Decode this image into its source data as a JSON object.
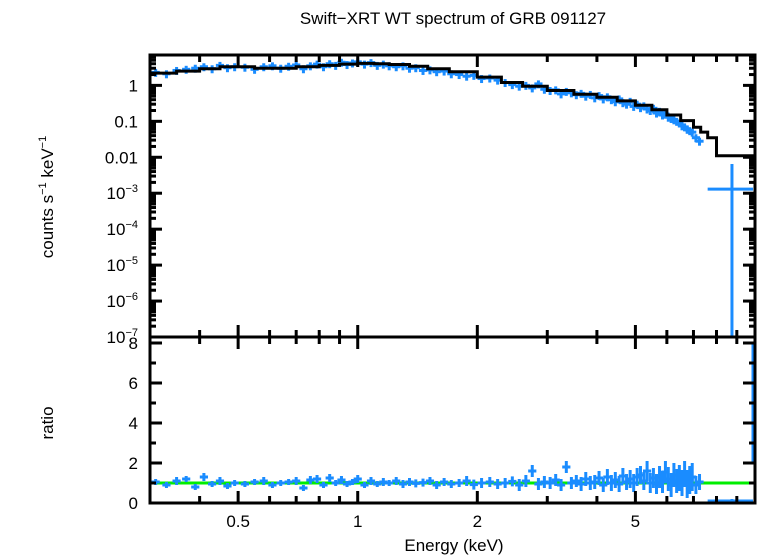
{
  "chart_data": [
    {
      "panel": "spectrum",
      "type": "scatter",
      "title": "Swift−XRT WT spectrum of GRB 091127",
      "xlabel": "Energy (keV)",
      "ylabel": "counts s⁻¹ keV⁻¹",
      "ylabel_parts": [
        "counts s",
        "−1",
        " keV",
        "−1"
      ],
      "xscale": "log",
      "yscale": "log",
      "xlim": [
        0.3,
        10
      ],
      "ylim": [
        1e-07,
        7
      ],
      "x_ticks": [
        0.5,
        1,
        2,
        5
      ],
      "x_tick_labels": [
        "0.5",
        "1",
        "2",
        "5"
      ],
      "y_ticks": [
        {
          "value": 1,
          "label": "1"
        },
        {
          "value": 0.1,
          "label": "0.1"
        },
        {
          "value": 0.01,
          "label": "0.01"
        },
        {
          "value": 0.001,
          "base": "10",
          "exp": "−3"
        },
        {
          "value": 0.0001,
          "base": "10",
          "exp": "−4"
        },
        {
          "value": 1e-05,
          "base": "10",
          "exp": "−5"
        },
        {
          "value": 1e-06,
          "base": "10",
          "exp": "−6"
        },
        {
          "value": 1e-07,
          "base": "10",
          "exp": "−7"
        }
      ],
      "series": [
        {
          "name": "data",
          "color": "#1a8cff",
          "style": "crosses with error bars",
          "x": [
            0.31,
            0.33,
            0.35,
            0.37,
            0.39,
            0.41,
            0.43,
            0.45,
            0.47,
            0.49,
            0.52,
            0.55,
            0.58,
            0.61,
            0.64,
            0.67,
            0.7,
            0.73,
            0.76,
            0.79,
            0.82,
            0.85,
            0.88,
            0.91,
            0.94,
            0.97,
            1.0,
            1.04,
            1.08,
            1.12,
            1.16,
            1.2,
            1.25,
            1.3,
            1.35,
            1.4,
            1.46,
            1.52,
            1.58,
            1.65,
            1.72,
            1.8,
            1.88,
            1.96,
            2.05,
            2.15,
            2.25,
            2.35,
            2.45,
            2.55,
            2.65,
            2.75,
            2.85,
            2.95,
            3.05,
            3.15,
            3.25,
            3.35,
            3.45,
            3.55,
            3.65,
            3.75,
            3.85,
            3.95,
            4.05,
            4.15,
            4.25,
            4.35,
            4.45,
            4.55,
            4.65,
            4.75,
            4.85,
            4.95,
            5.05,
            5.15,
            5.25,
            5.35,
            5.45,
            5.55,
            5.65,
            5.75,
            5.85,
            5.95,
            6.05,
            6.15,
            6.25,
            6.35,
            6.45,
            6.55,
            6.65,
            6.75,
            6.85,
            6.95,
            7.1,
            7.25,
            8.75
          ],
          "y": [
            2.3,
            2.1,
            2.6,
            2.8,
            3.0,
            3.3,
            2.9,
            3.6,
            3.1,
            3.3,
            3.2,
            2.8,
            3.3,
            3.5,
            3.0,
            3.4,
            3.7,
            2.9,
            3.5,
            3.9,
            3.3,
            4.0,
            3.6,
            4.4,
            3.8,
            4.2,
            4.5,
            3.9,
            4.3,
            3.6,
            3.9,
            3.5,
            3.3,
            3.5,
            3.0,
            3.1,
            2.6,
            2.7,
            2.4,
            2.5,
            2.1,
            2.0,
            1.8,
            1.9,
            1.55,
            1.6,
            1.4,
            1.2,
            1.05,
            0.95,
            1.0,
            0.85,
            1.1,
            0.78,
            0.72,
            0.75,
            0.58,
            0.68,
            0.62,
            0.55,
            0.6,
            0.5,
            0.56,
            0.45,
            0.52,
            0.42,
            0.48,
            0.4,
            0.35,
            0.42,
            0.33,
            0.3,
            0.36,
            0.26,
            0.3,
            0.24,
            0.27,
            0.22,
            0.2,
            0.23,
            0.17,
            0.19,
            0.15,
            0.16,
            0.13,
            0.12,
            0.11,
            0.1,
            0.09,
            0.075,
            0.07,
            0.06,
            0.055,
            0.05,
            0.035,
            0.028,
            0.0013
          ],
          "y_err_frac": 0.25,
          "x_halfwidth_frac": 0.012
        },
        {
          "name": "model",
          "color": "#000000",
          "style": "step line",
          "x": [
            0.3,
            0.35,
            0.4,
            0.45,
            0.5,
            0.55,
            0.6,
            0.7,
            0.8,
            0.9,
            1.0,
            1.1,
            1.2,
            1.35,
            1.5,
            1.7,
            2.0,
            2.3,
            2.6,
            3.0,
            3.5,
            4.0,
            4.5,
            5.0,
            5.5,
            6.0,
            6.5,
            7.0,
            7.3,
            7.6,
            8.0,
            10.0
          ],
          "y": [
            2.2,
            2.5,
            2.9,
            3.3,
            3.3,
            3.0,
            3.0,
            3.3,
            3.6,
            3.9,
            4.1,
            4.0,
            3.8,
            3.4,
            2.9,
            2.4,
            1.7,
            1.2,
            0.95,
            0.72,
            0.57,
            0.47,
            0.37,
            0.28,
            0.21,
            0.15,
            0.105,
            0.068,
            0.05,
            0.035,
            0.011,
            0.011
          ]
        }
      ]
    },
    {
      "panel": "ratio",
      "type": "scatter",
      "xlabel": "Energy (keV)",
      "ylabel": "ratio",
      "xscale": "log",
      "yscale": "linear",
      "xlim": [
        0.3,
        10
      ],
      "ylim": [
        0,
        8
      ],
      "x_ticks": [
        0.5,
        1,
        2,
        5
      ],
      "x_tick_labels": [
        "0.5",
        "1",
        "2",
        "5"
      ],
      "y_ticks": [
        0,
        2,
        4,
        6,
        8
      ],
      "y_tick_labels": [
        "0",
        "2",
        "4",
        "6",
        "8"
      ],
      "reference_line": {
        "value": 1,
        "color": "#00ee00"
      },
      "series": [
        {
          "name": "ratio",
          "color": "#1a8cff",
          "x": [
            0.31,
            0.33,
            0.35,
            0.37,
            0.39,
            0.41,
            0.43,
            0.45,
            0.47,
            0.49,
            0.52,
            0.55,
            0.58,
            0.61,
            0.64,
            0.67,
            0.7,
            0.73,
            0.76,
            0.79,
            0.82,
            0.85,
            0.88,
            0.91,
            0.94,
            0.97,
            1.0,
            1.04,
            1.08,
            1.12,
            1.16,
            1.2,
            1.25,
            1.3,
            1.35,
            1.4,
            1.46,
            1.52,
            1.58,
            1.65,
            1.72,
            1.8,
            1.88,
            1.96,
            2.05,
            2.15,
            2.25,
            2.35,
            2.45,
            2.55,
            2.65,
            2.75,
            2.85,
            2.95,
            3.05,
            3.15,
            3.25,
            3.35,
            3.45,
            3.55,
            3.65,
            3.75,
            3.85,
            3.95,
            4.05,
            4.15,
            4.25,
            4.35,
            4.45,
            4.55,
            4.65,
            4.75,
            4.85,
            4.95,
            5.05,
            5.15,
            5.25,
            5.35,
            5.45,
            5.55,
            5.65,
            5.75,
            5.85,
            5.95,
            6.05,
            6.15,
            6.25,
            6.35,
            6.45,
            6.55,
            6.65,
            6.75,
            6.85,
            6.95,
            7.1,
            7.25,
            8.75,
            9.9
          ],
          "y": [
            1.05,
            0.9,
            1.1,
            1.2,
            0.8,
            1.3,
            0.95,
            1.1,
            0.85,
            1.0,
            0.95,
            1.05,
            1.1,
            0.9,
            1.0,
            1.05,
            1.1,
            0.75,
            1.15,
            1.2,
            0.9,
            1.25,
            1.0,
            1.15,
            0.95,
            1.05,
            1.2,
            0.9,
            1.1,
            0.95,
            1.05,
            1.0,
            1.1,
            0.95,
            1.05,
            0.98,
            1.02,
            1.1,
            0.9,
            1.05,
            0.95,
            1.0,
            1.1,
            0.92,
            1.0,
            1.05,
            0.95,
            1.0,
            1.08,
            0.9,
            1.1,
            1.6,
            0.95,
            1.05,
            1.0,
            1.15,
            0.9,
            1.8,
            1.0,
            1.1,
            0.95,
            1.2,
            1.0,
            1.05,
            1.25,
            0.9,
            1.3,
            1.0,
            1.15,
            0.95,
            1.35,
            1.05,
            1.2,
            1.0,
            1.3,
            1.4,
            1.1,
            1.6,
            1.0,
            1.25,
            0.95,
            1.3,
            1.05,
            1.55,
            1.2,
            0.9,
            1.4,
            1.1,
            1.25,
            1.0,
            1.45,
            0.95,
            1.15,
            1.3,
            0.9,
            1.05,
            0.1,
            5.0
          ],
          "y_err": [
            0.15,
            0.15,
            0.2,
            0.15,
            0.15,
            0.2,
            0.15,
            0.2,
            0.15,
            0.15,
            0.15,
            0.15,
            0.2,
            0.15,
            0.15,
            0.15,
            0.2,
            0.15,
            0.2,
            0.2,
            0.15,
            0.2,
            0.15,
            0.2,
            0.15,
            0.15,
            0.2,
            0.15,
            0.2,
            0.15,
            0.2,
            0.15,
            0.2,
            0.2,
            0.2,
            0.2,
            0.2,
            0.2,
            0.2,
            0.2,
            0.2,
            0.2,
            0.25,
            0.25,
            0.25,
            0.25,
            0.25,
            0.25,
            0.25,
            0.3,
            0.3,
            0.3,
            0.3,
            0.3,
            0.3,
            0.3,
            0.3,
            0.3,
            0.3,
            0.3,
            0.35,
            0.35,
            0.35,
            0.35,
            0.35,
            0.35,
            0.4,
            0.4,
            0.4,
            0.4,
            0.4,
            0.4,
            0.45,
            0.45,
            0.45,
            0.45,
            0.45,
            0.5,
            0.5,
            0.5,
            0.5,
            0.55,
            0.55,
            0.55,
            0.6,
            0.6,
            0.6,
            0.6,
            0.65,
            0.65,
            0.65,
            0.7,
            0.7,
            0.7,
            0.45,
            0.4,
            0.1,
            3.0
          ]
        }
      ]
    }
  ]
}
